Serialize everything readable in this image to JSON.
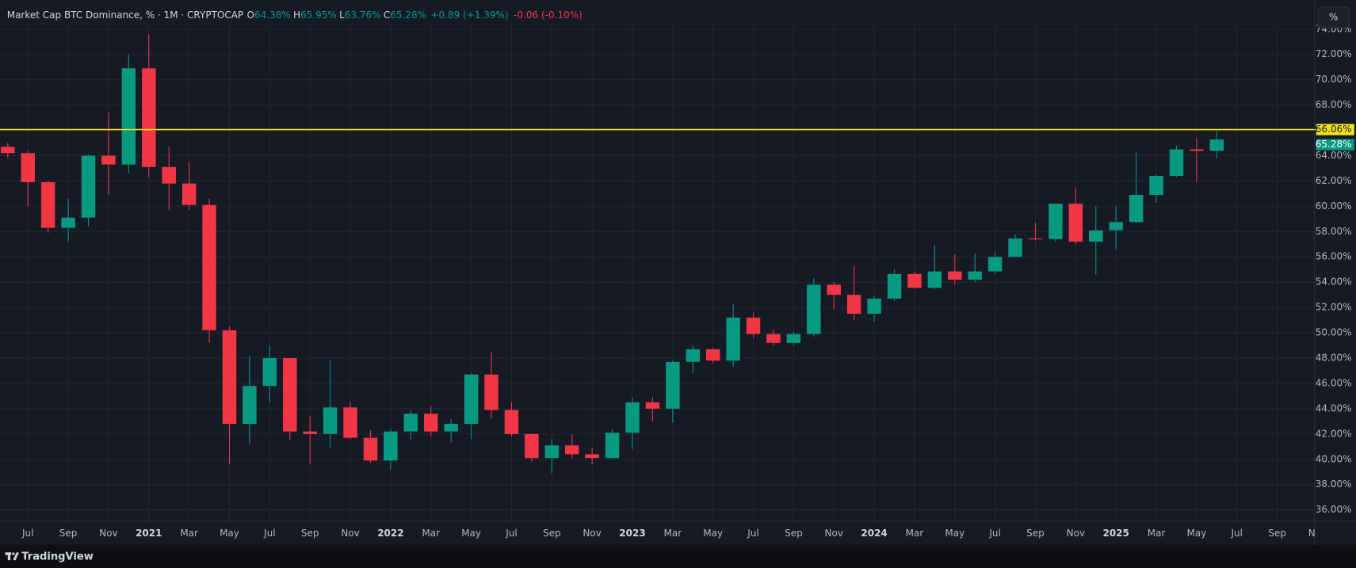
{
  "ui": {
    "legend_title": "Market Cap BTC Dominance, % · 1M · CRYPTOCAP",
    "legend": [
      {
        "key": "O",
        "value": "64.38%"
      },
      {
        "key": "H",
        "value": "65.95%"
      },
      {
        "key": "L",
        "value": "63.76%"
      },
      {
        "key": "C",
        "value": "65.28%"
      }
    ],
    "change": "+0.89 (+1.39%)",
    "change_live": "-0.06 (-0.10%)",
    "scale_button": "%",
    "brand": "TradingView"
  },
  "chart_data": {
    "type": "candlestick",
    "up_color": "#089981",
    "down_color": "#f23645",
    "grid": true,
    "categories": [
      null,
      "Jul",
      null,
      "Sep",
      null,
      "Nov",
      null,
      "2021",
      null,
      "Mar",
      null,
      "May",
      null,
      "Jul",
      null,
      "Sep",
      null,
      "Nov",
      null,
      "2022",
      null,
      "Mar",
      null,
      "May",
      null,
      "Jul",
      null,
      "Sep",
      null,
      "Nov",
      null,
      "2023",
      null,
      "Mar",
      null,
      "May",
      null,
      "Jul",
      null,
      "Sep",
      null,
      "Nov",
      null,
      "2024",
      null,
      "Mar",
      null,
      "May",
      null,
      "Jul",
      null,
      "Sep",
      null,
      "Nov",
      null,
      "2025",
      null,
      "Mar",
      null,
      "May",
      null,
      "Jul",
      null,
      "Sep",
      null,
      "Nov"
    ],
    "open": [
      64.7,
      64.2,
      61.9,
      58.3,
      59.1,
      64.0,
      63.3,
      70.9,
      63.1,
      61.8,
      60.1,
      50.2,
      42.8,
      45.8,
      48.0,
      42.2,
      42.0,
      44.1,
      41.7,
      39.9,
      42.2,
      43.6,
      42.2,
      42.8,
      46.7,
      43.9,
      42.0,
      40.1,
      41.1,
      40.4,
      40.1,
      42.1,
      44.5,
      44.0,
      47.7,
      48.7,
      47.8,
      51.2,
      49.9,
      49.2,
      49.9,
      53.8,
      53.0,
      51.5,
      52.7,
      54.65,
      53.55,
      54.85,
      54.2,
      54.85,
      56.0,
      57.45,
      57.4,
      60.2,
      57.2,
      58.1,
      58.75,
      60.9,
      62.4,
      64.5,
      64.38,
      null,
      null,
      null,
      null,
      null
    ],
    "high": [
      65.0,
      64.4,
      62.0,
      60.6,
      64.1,
      67.4,
      72.0,
      73.6,
      64.7,
      63.5,
      60.6,
      50.5,
      48.2,
      49.0,
      48.0,
      43.4,
      47.8,
      44.5,
      42.3,
      42.4,
      43.9,
      44.2,
      43.2,
      46.8,
      48.5,
      44.5,
      42.0,
      41.6,
      42.0,
      40.9,
      42.4,
      44.9,
      44.9,
      47.8,
      49.0,
      48.8,
      52.3,
      51.6,
      50.3,
      50.1,
      54.3,
      54.0,
      55.3,
      52.9,
      55.0,
      54.85,
      56.95,
      56.2,
      56.3,
      56.35,
      57.8,
      58.7,
      60.2,
      61.5,
      60.0,
      60.0,
      64.3,
      62.5,
      64.8,
      65.4,
      65.95,
      null,
      null,
      null,
      null,
      null
    ],
    "low": [
      63.8,
      60.0,
      57.9,
      57.2,
      58.4,
      60.9,
      62.6,
      62.3,
      59.7,
      59.7,
      49.2,
      39.6,
      41.2,
      44.5,
      41.5,
      39.6,
      40.9,
      41.6,
      39.7,
      39.2,
      41.6,
      41.8,
      41.3,
      41.6,
      43.2,
      41.8,
      39.8,
      38.9,
      40.1,
      39.6,
      40.1,
      40.8,
      43.0,
      42.9,
      46.8,
      47.6,
      47.3,
      49.6,
      49.0,
      49.0,
      49.7,
      51.85,
      51.0,
      50.9,
      52.5,
      53.5,
      53.45,
      53.8,
      54.0,
      54.6,
      56.0,
      57.3,
      57.2,
      57.0,
      54.6,
      56.6,
      58.7,
      60.3,
      62.3,
      61.9,
      63.76,
      null,
      null,
      null,
      null,
      null
    ],
    "close": [
      64.2,
      61.9,
      58.3,
      59.1,
      64.0,
      63.3,
      70.9,
      63.1,
      61.8,
      60.1,
      50.2,
      42.8,
      45.8,
      48.0,
      42.2,
      42.0,
      44.1,
      41.7,
      39.9,
      42.2,
      43.6,
      42.2,
      42.8,
      46.7,
      43.9,
      42.0,
      40.1,
      41.1,
      40.4,
      40.1,
      42.1,
      44.5,
      44.0,
      47.7,
      48.7,
      47.8,
      51.2,
      49.9,
      49.2,
      49.9,
      53.8,
      53.0,
      51.5,
      52.7,
      54.65,
      53.55,
      54.85,
      54.2,
      54.85,
      56.0,
      57.45,
      57.4,
      60.2,
      57.2,
      58.1,
      58.75,
      60.9,
      62.4,
      64.5,
      64.38,
      65.28,
      null,
      null,
      null,
      null,
      null
    ],
    "ylim": [
      35.1,
      74.25
    ],
    "yticks": [
      {
        "value": 36,
        "label": "36.00%"
      },
      {
        "value": 38,
        "label": "38.00%"
      },
      {
        "value": 40,
        "label": "40.00%"
      },
      {
        "value": 42,
        "label": "42.00%"
      },
      {
        "value": 44,
        "label": "44.00%"
      },
      {
        "value": 46,
        "label": "46.00%"
      },
      {
        "value": 48,
        "label": "48.00%"
      },
      {
        "value": 50,
        "label": "50.00%"
      },
      {
        "value": 52,
        "label": "52.00%"
      },
      {
        "value": 54,
        "label": "54.00%"
      },
      {
        "value": 56,
        "label": "56.00%"
      },
      {
        "value": 58,
        "label": "58.00%"
      },
      {
        "value": 60,
        "label": "60.00%"
      },
      {
        "value": 62,
        "label": "62.00%"
      },
      {
        "value": 64,
        "label": "64.00%"
      },
      {
        "value": 68,
        "label": "68.00%"
      },
      {
        "value": 70,
        "label": "70.00%"
      },
      {
        "value": 72,
        "label": "72.00%"
      },
      {
        "value": 74,
        "label": "74.00%"
      }
    ],
    "hline": {
      "value": 66.06,
      "label": "66.06%",
      "color": "#f5e31a"
    },
    "last_price": {
      "value": 65.28,
      "label": "65.28%"
    }
  }
}
